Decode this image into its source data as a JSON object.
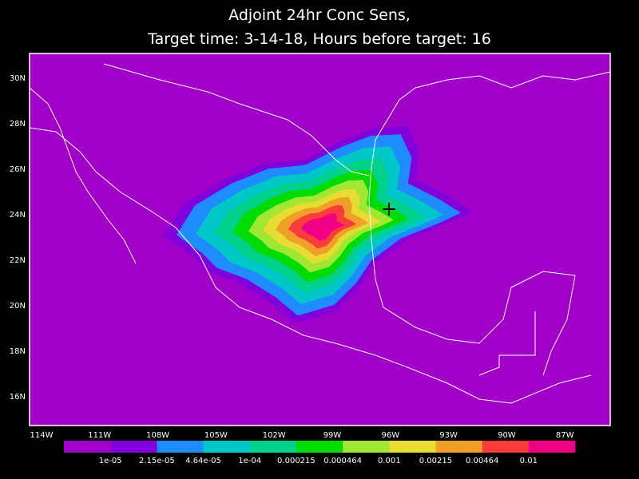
{
  "title": {
    "line1": "Adjoint 24hr Conc Sens,",
    "line2": "Target time: 3-14-18, Hours before target: 16"
  },
  "lat_labels": [
    "30N",
    "28N",
    "26N",
    "24N",
    "22N",
    "20N",
    "18N",
    "16N"
  ],
  "lon_labels": [
    "114W",
    "111W",
    "108W",
    "105W",
    "102W",
    "99W",
    "96W",
    "93W",
    "90W",
    "87W"
  ],
  "colorbar": {
    "colors": [
      "#a000c8",
      "#8200dc",
      "#1e8cff",
      "#00c8c8",
      "#00d28c",
      "#00dc00",
      "#a0e632",
      "#e6dc32",
      "#f0a028",
      "#fa3c3c",
      "#f00082"
    ],
    "labels": [
      "1e-05",
      "2.15e-05",
      "4.64e-05",
      "1e-04",
      "0.000215",
      "0.000464",
      "0.001",
      "0.00215",
      "0.00464",
      "0.01"
    ]
  }
}
